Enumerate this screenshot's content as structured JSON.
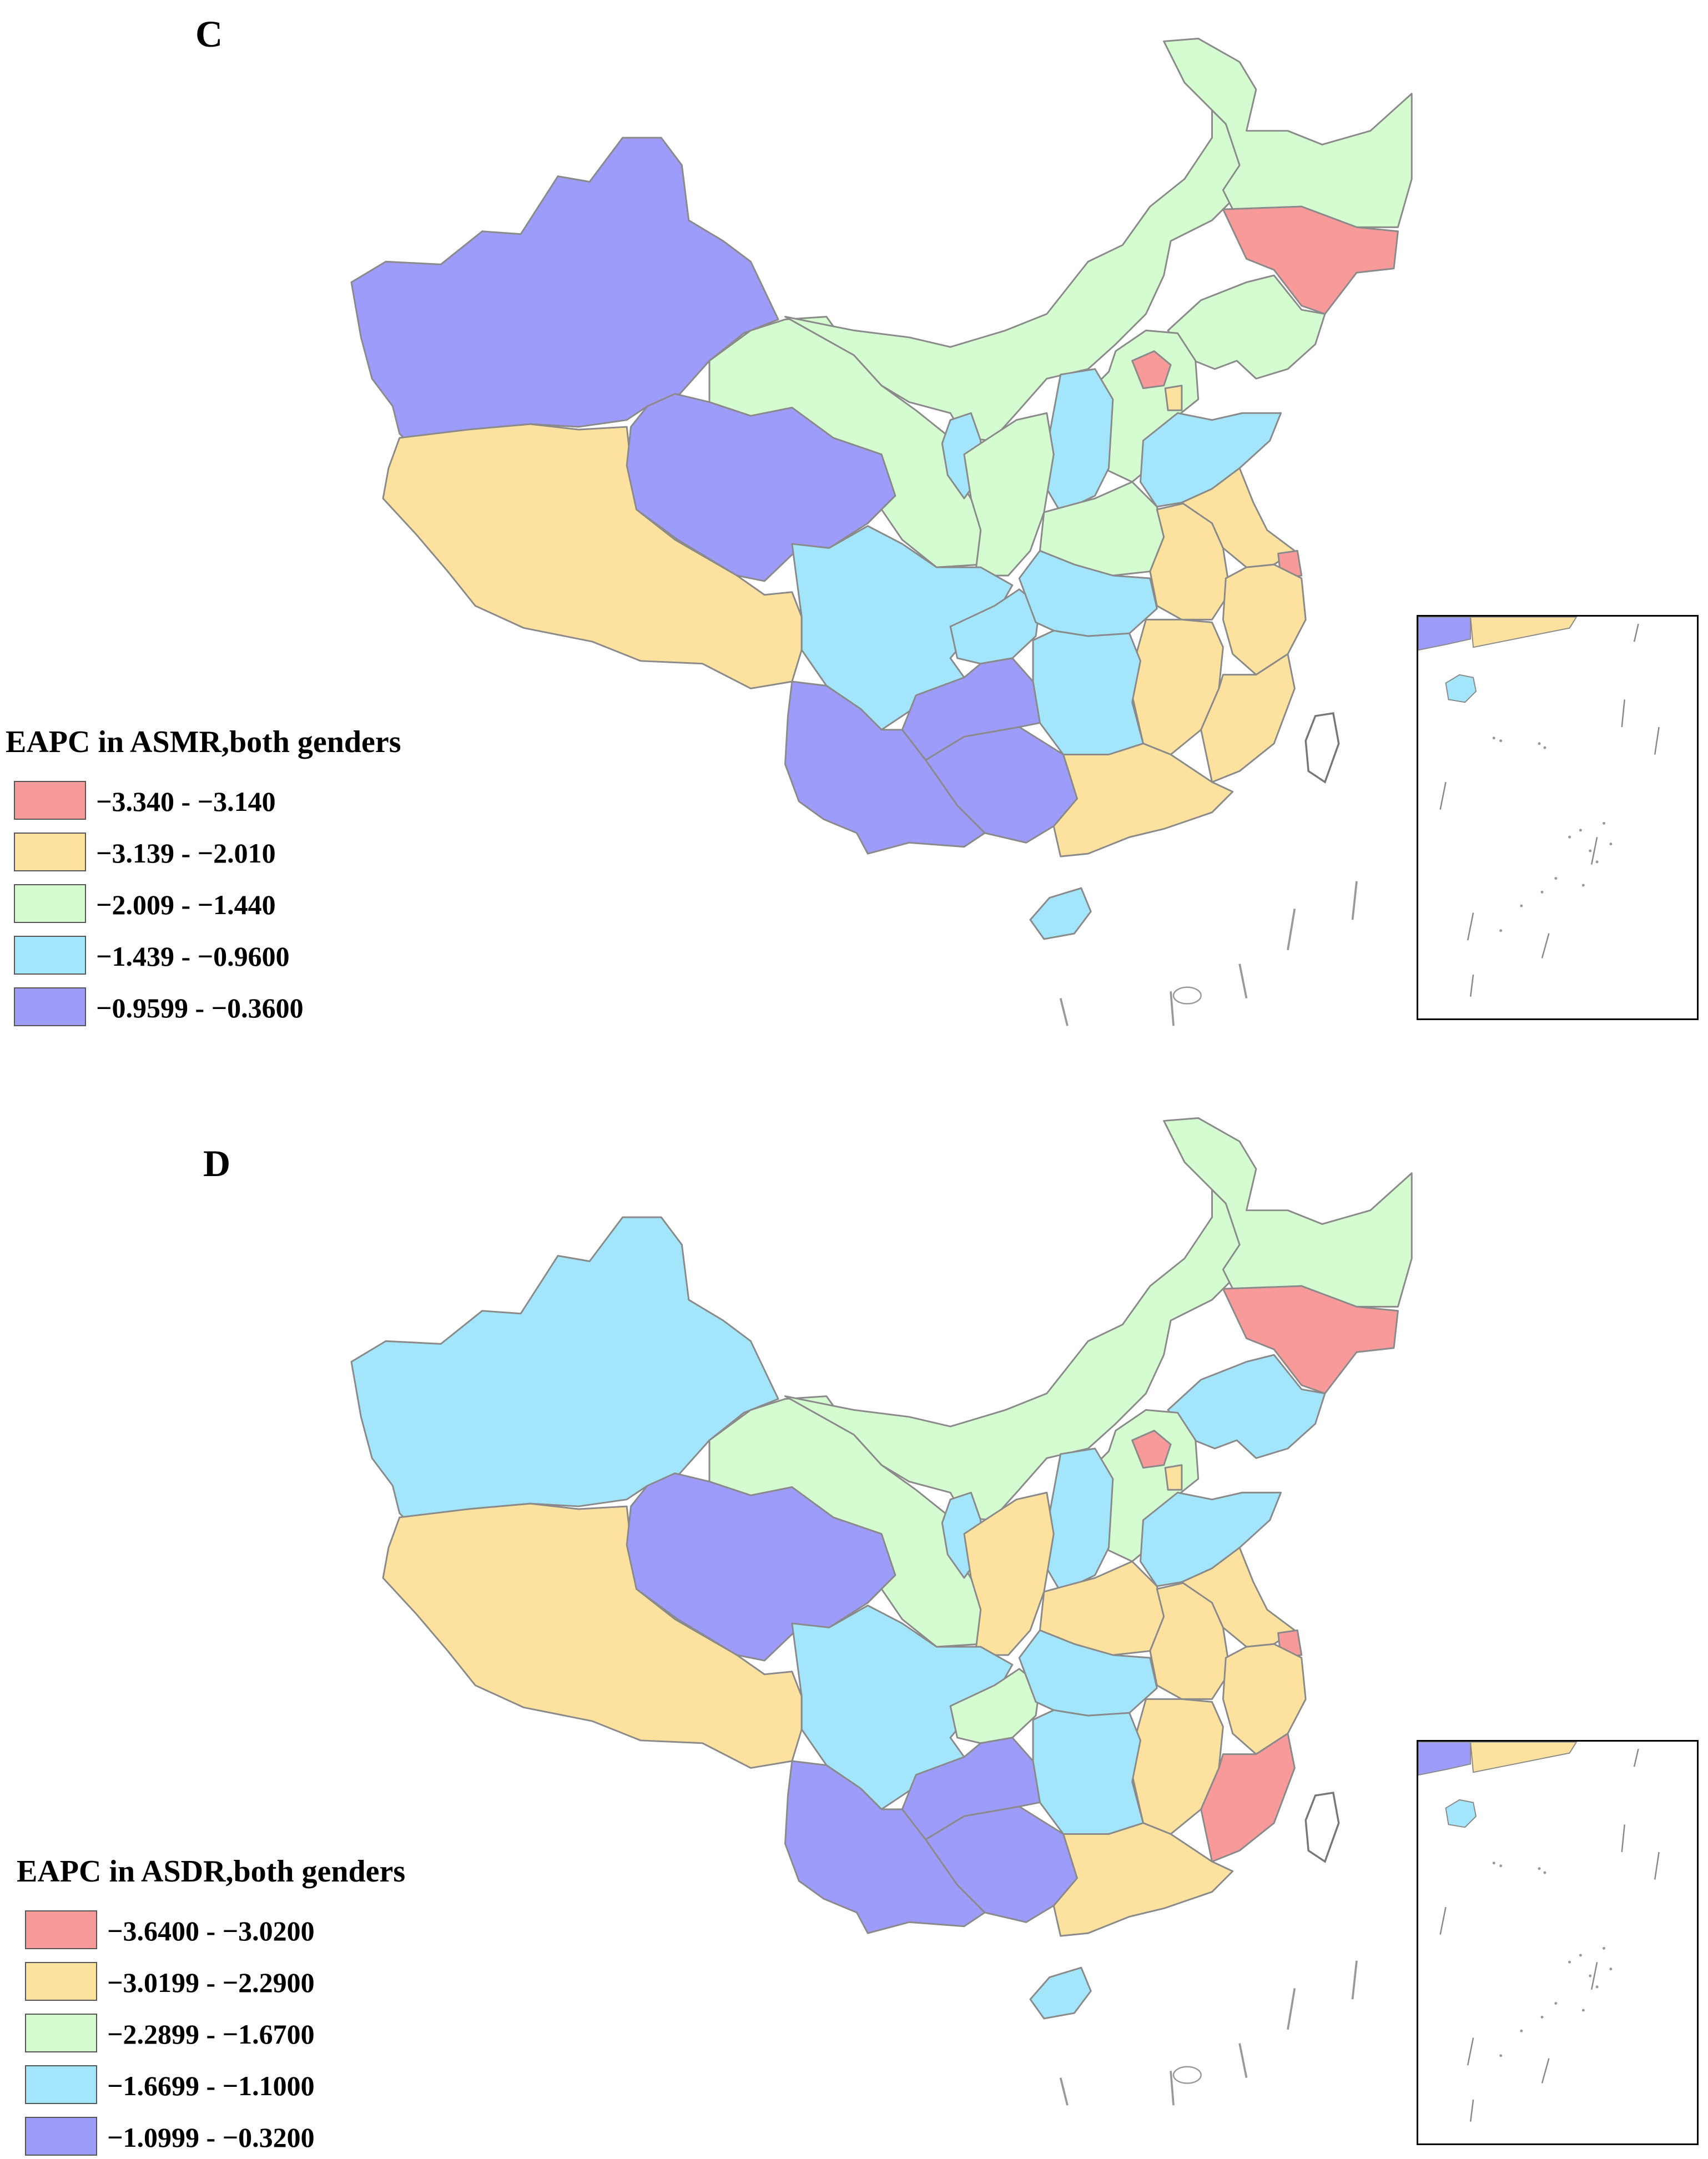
{
  "colors": {
    "class1": "#f99a9a",
    "class2": "#fce29e",
    "class3": "#d5fcd1",
    "class4": "#a3e6fb",
    "class5": "#9d9cfb",
    "border": "#8a8a8a",
    "coast": "#9a9a9a"
  },
  "panels": [
    {
      "letter": "C",
      "legend": {
        "title": "EAPC in ASMR,both genders",
        "items": [
          {
            "label": "−3.340 - −3.140",
            "color": "#f99a9a"
          },
          {
            "label": "−3.139 - −2.010",
            "color": "#fce29e"
          },
          {
            "label": "−2.009 - −1.440",
            "color": "#d5fcd1"
          },
          {
            "label": "−1.439 - −0.9600",
            "color": "#a3e6fb"
          },
          {
            "label": "−0.9599 - −0.3600",
            "color": "#9d9cfb"
          }
        ]
      },
      "region_classes": {
        "xinjiang": 5,
        "tibet": 2,
        "qinghai": 5,
        "gansu": 3,
        "inner_mongolia": 3,
        "heilongjiang": 3,
        "jilin": 1,
        "liaoning": 3,
        "beijing": 1,
        "tianjin": 2,
        "hebei": 3,
        "shanxi": 4,
        "shandong": 4,
        "henan": 3,
        "ningxia": 4,
        "shaanxi": 3,
        "sichuan": 4,
        "chongqing": 4,
        "hubei": 4,
        "anhui": 2,
        "jiangsu": 2,
        "shanghai": 1,
        "zhejiang": 2,
        "jiangxi": 2,
        "hunan": 4,
        "fujian": 2,
        "guangdong": 2,
        "guangxi": 5,
        "guizhou": 5,
        "yunnan": 5,
        "hainan": 4,
        "taiwan": 0,
        "inset_hainan": 4,
        "inset_guangdong": 2,
        "inset_guangxi": 5
      }
    },
    {
      "letter": "D",
      "legend": {
        "title": "EAPC in ASDR,both genders",
        "items": [
          {
            "label": "−3.6400 - −3.0200",
            "color": "#f99a9a"
          },
          {
            "label": "−3.0199 - −2.2900",
            "color": "#fce29e"
          },
          {
            "label": "−2.2899 - −1.6700",
            "color": "#d5fcd1"
          },
          {
            "label": "−1.6699 - −1.1000",
            "color": "#a3e6fb"
          },
          {
            "label": "−1.0999 - −0.3200",
            "color": "#9d9cfb"
          }
        ]
      },
      "region_classes": {
        "xinjiang": 4,
        "tibet": 2,
        "qinghai": 5,
        "gansu": 3,
        "inner_mongolia": 3,
        "heilongjiang": 3,
        "jilin": 1,
        "liaoning": 4,
        "beijing": 1,
        "tianjin": 2,
        "hebei": 3,
        "shanxi": 4,
        "shandong": 4,
        "henan": 2,
        "ningxia": 4,
        "shaanxi": 2,
        "sichuan": 4,
        "chongqing": 3,
        "hubei": 4,
        "anhui": 2,
        "jiangsu": 2,
        "shanghai": 1,
        "zhejiang": 2,
        "jiangxi": 2,
        "hunan": 4,
        "fujian": 1,
        "guangdong": 2,
        "guangxi": 5,
        "guizhou": 5,
        "yunnan": 5,
        "hainan": 4,
        "taiwan": 0,
        "inset_hainan": 4,
        "inset_guangdong": 2,
        "inset_guangxi": 5
      }
    }
  ]
}
